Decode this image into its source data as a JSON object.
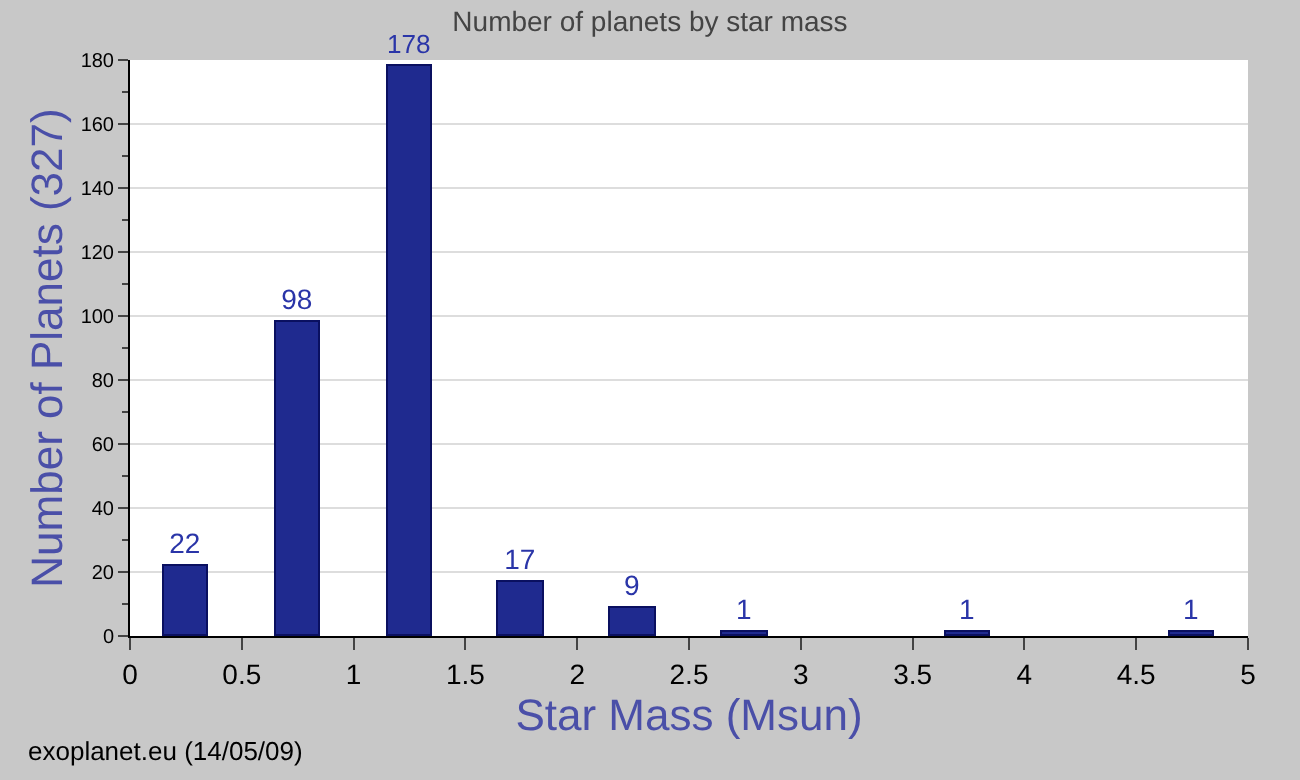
{
  "chart_data": {
    "type": "bar",
    "title": "Number of planets by star mass",
    "xlabel": "Star Mass (Msun)",
    "ylabel": "Number of Planets (327)",
    "x": [
      0.25,
      0.75,
      1.25,
      1.75,
      2.25,
      2.75,
      3.75,
      4.75
    ],
    "values": [
      22,
      98,
      178,
      17,
      9,
      1,
      1,
      1
    ],
    "color": "#1f2a8f",
    "xlim": [
      0,
      5
    ],
    "xticks": [
      0,
      0.5,
      1,
      1.5,
      2,
      2.5,
      3,
      3.5,
      4,
      4.5,
      5
    ],
    "ylim": [
      0,
      180
    ],
    "yticks": [
      0,
      20,
      40,
      60,
      80,
      100,
      120,
      140,
      160,
      180
    ],
    "grid": "y",
    "data_labels": true,
    "legend": false,
    "annotations": [
      "exoplanet.eu (14/05/09)"
    ]
  }
}
